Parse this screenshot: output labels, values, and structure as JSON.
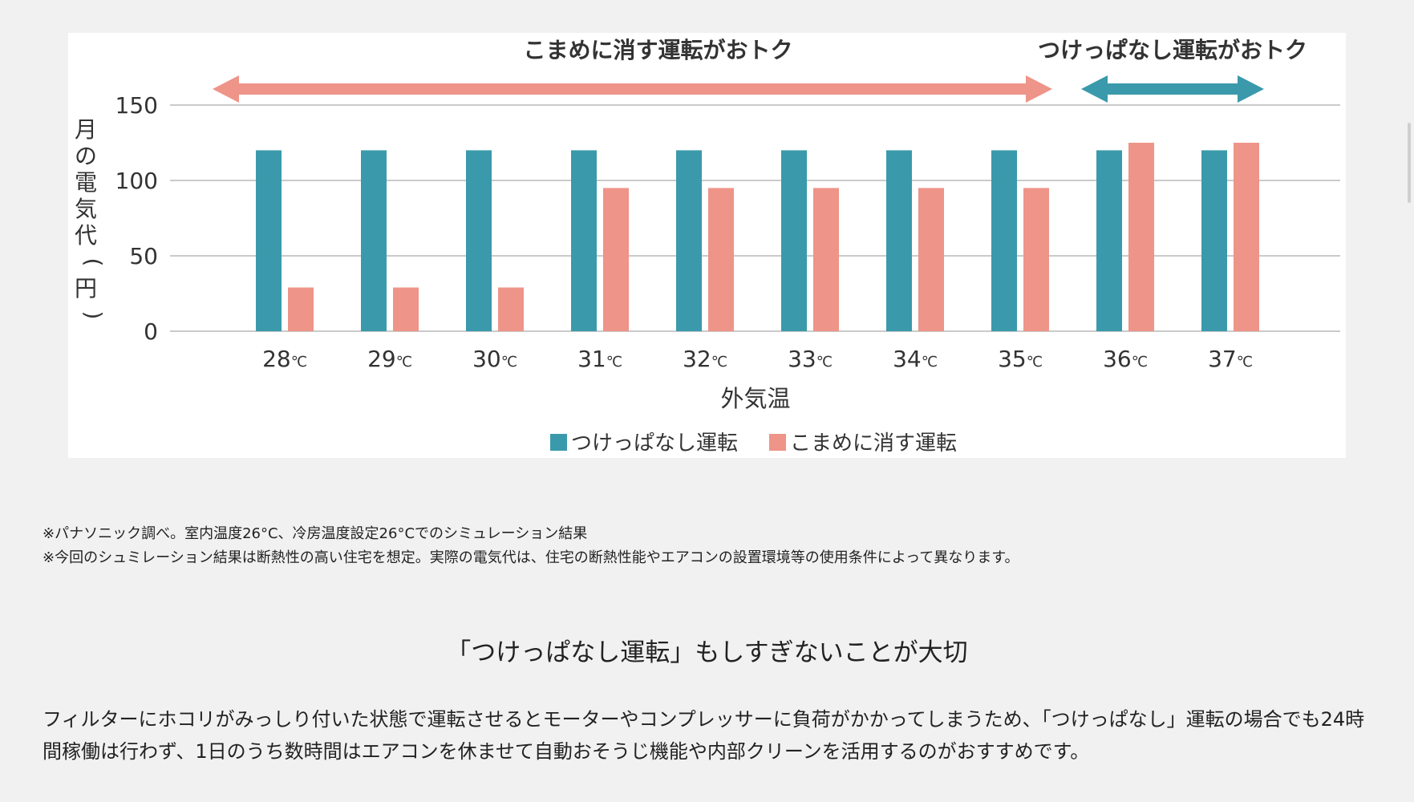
{
  "chart_data": {
    "type": "bar",
    "ylabel": "月の電気代(円)",
    "xlabel": "外気温",
    "ylim": [
      0,
      150
    ],
    "yticks": [
      0,
      50,
      100,
      150
    ],
    "grid": true,
    "legend_position": "bottom-center",
    "categories": [
      "28",
      "29",
      "30",
      "31",
      "32",
      "33",
      "34",
      "35",
      "36",
      "37"
    ],
    "category_unit": "℃",
    "series": [
      {
        "name": "つけっぱなし運転",
        "color": "#3a9aab",
        "values": [
          120,
          120,
          120,
          120,
          120,
          120,
          120,
          120,
          120,
          120
        ]
      },
      {
        "name": "こまめに消す運転",
        "color": "#ee9488",
        "values": [
          29,
          29,
          29,
          95,
          95,
          95,
          95,
          95,
          125,
          125
        ]
      }
    ],
    "annotations": [
      {
        "text": "こまめに消す運転がおトク",
        "from": "28",
        "to": "35",
        "color": "#ee9488"
      },
      {
        "text": "つけっぱなし運転がおトク",
        "from": "36",
        "to": "37",
        "color": "#3a9aab"
      }
    ]
  },
  "notes": [
    "※パナソニック調べ。室内温度26°C、冷房温度設定26°Cでのシミュレーション結果",
    "※今回のシュミレーション結果は断熱性の高い住宅を想定。実際の電気代は、住宅の断熱性能やエアコンの設置環境等の使用条件によって異なります。"
  ],
  "section": {
    "heading": "「つけっぱなし運転」もしすぎないことが大切",
    "body": "フィルターにホコリがみっしり付いた状態で運転させるとモーターやコンプレッサーに負荷がかかってしまうため、「つけっぱなし」運転の場合でも24時間稼働は行わず、1日のうち数時間はエアコンを休ませて自動おそうじ機能や内部クリーンを活用するのがおすすめです。"
  }
}
